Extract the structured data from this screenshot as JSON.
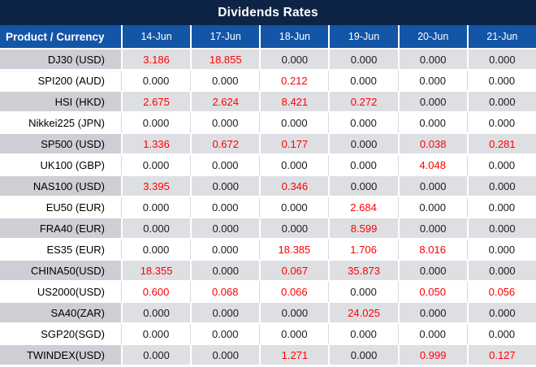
{
  "title": "Dividends Rates",
  "colors": {
    "title_bar_bg": "#0E2446",
    "header_bg": "#1355A6",
    "header_text": "#FFFFFF",
    "stripe_label_bg": "#CDCFD4",
    "stripe_value_bg": "#DEDFE3",
    "plain_row_bg": "#FFFFFF",
    "product_text": "#000000",
    "value_zero_text": "#1B1B1F",
    "value_nonzero_text": "#FF0000",
    "grid_line": "#D8D9DD",
    "row_divider": "#FFFFFF"
  },
  "table": {
    "header": [
      "Product / Currency",
      "14-Jun",
      "17-Jun",
      "18-Jun",
      "19-Jun",
      "20-Jun",
      "21-Jun"
    ],
    "rows": [
      {
        "product": "DJ30 (USD)",
        "values": [
          "3.186",
          "18.855",
          "0.000",
          "0.000",
          "0.000",
          "0.000"
        ]
      },
      {
        "product": "SPI200 (AUD)",
        "values": [
          "0.000",
          "0.000",
          "0.212",
          "0.000",
          "0.000",
          "0.000"
        ]
      },
      {
        "product": "HSI (HKD)",
        "values": [
          "2.675",
          "2.624",
          "8.421",
          "0.272",
          "0.000",
          "0.000"
        ]
      },
      {
        "product": "Nikkei225 (JPN)",
        "values": [
          "0.000",
          "0.000",
          "0.000",
          "0.000",
          "0.000",
          "0.000"
        ]
      },
      {
        "product": "SP500 (USD)",
        "values": [
          "1.336",
          "0.672",
          "0.177",
          "0.000",
          "0.038",
          "0.281"
        ]
      },
      {
        "product": "UK100 (GBP)",
        "values": [
          "0.000",
          "0.000",
          "0.000",
          "0.000",
          "4.048",
          "0.000"
        ]
      },
      {
        "product": "NAS100 (USD)",
        "values": [
          "3.395",
          "0.000",
          "0.346",
          "0.000",
          "0.000",
          "0.000"
        ]
      },
      {
        "product": "EU50 (EUR)",
        "values": [
          "0.000",
          "0.000",
          "0.000",
          "2.684",
          "0.000",
          "0.000"
        ]
      },
      {
        "product": "FRA40 (EUR)",
        "values": [
          "0.000",
          "0.000",
          "0.000",
          "8.599",
          "0.000",
          "0.000"
        ]
      },
      {
        "product": "ES35 (EUR)",
        "values": [
          "0.000",
          "0.000",
          "18.385",
          "1.706",
          "8.016",
          "0.000"
        ]
      },
      {
        "product": "CHINA50(USD)",
        "values": [
          "18.355",
          "0.000",
          "0.067",
          "35.873",
          "0.000",
          "0.000"
        ]
      },
      {
        "product": "US2000(USD)",
        "values": [
          "0.600",
          "0.068",
          "0.066",
          "0.000",
          "0.050",
          "0.056"
        ]
      },
      {
        "product": "SA40(ZAR)",
        "values": [
          "0.000",
          "0.000",
          "0.000",
          "24.025",
          "0.000",
          "0.000"
        ]
      },
      {
        "product": "SGP20(SGD)",
        "values": [
          "0.000",
          "0.000",
          "0.000",
          "0.000",
          "0.000",
          "0.000"
        ]
      },
      {
        "product": "TWINDEX(USD)",
        "values": [
          "0.000",
          "0.000",
          "1.271",
          "0.000",
          "0.999",
          "0.127"
        ]
      }
    ]
  }
}
